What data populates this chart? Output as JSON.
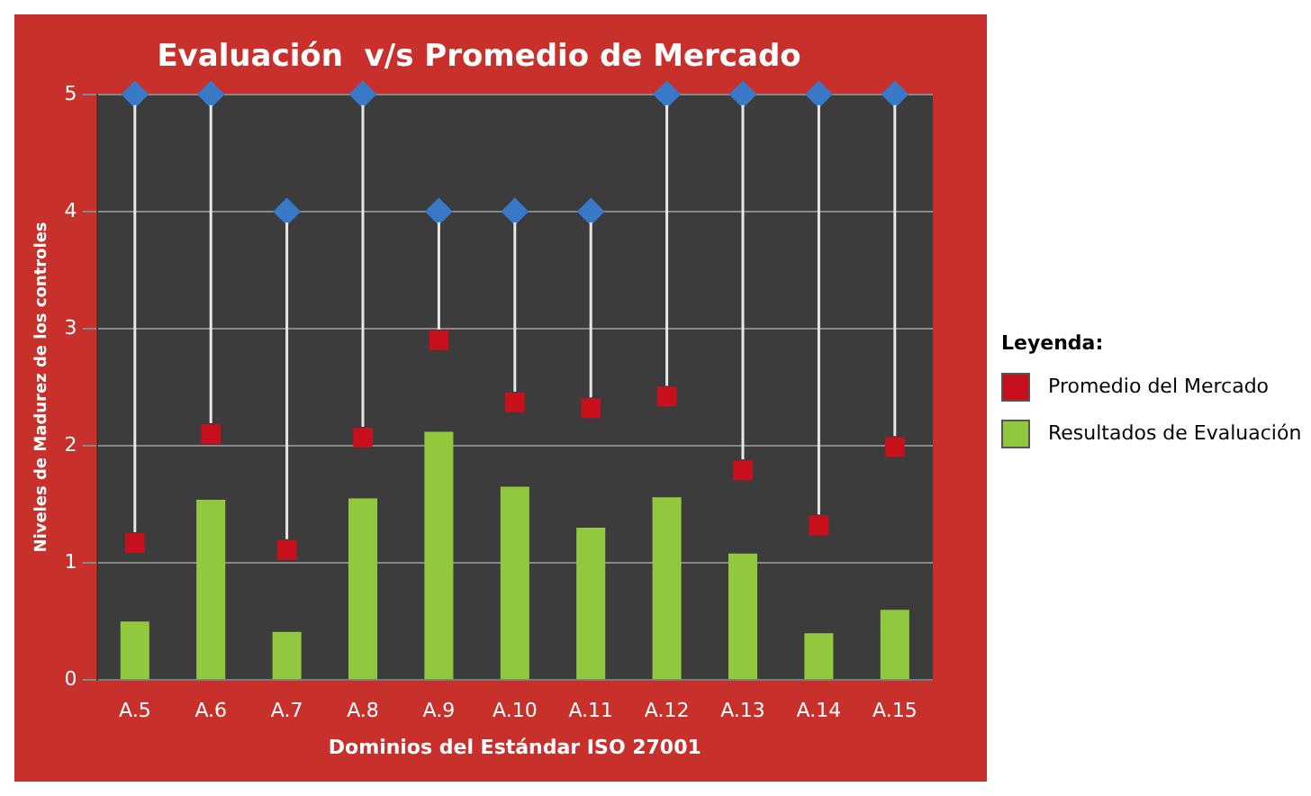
{
  "chart_data": {
    "type": "bar",
    "title": "Evaluación  v/s Promedio de Mercado",
    "xlabel": "Dominios del Estándar ISO 27001",
    "ylabel": "Niveles de Madurez de los controles",
    "legend_title": "Leyenda:",
    "categories": [
      "A.5",
      "A.6",
      "A.7",
      "A.8",
      "A.9",
      "A.10",
      "A.11",
      "A.12",
      "A.13",
      "A.14",
      "A.15"
    ],
    "series": [
      {
        "type": "scatter",
        "marker": "diamond",
        "color": "#3a78c8",
        "values": [
          5,
          5,
          4,
          5,
          4,
          4,
          4,
          5,
          5,
          5,
          5
        ]
      },
      {
        "type": "scatter",
        "marker": "square",
        "name": "Promedio del Mercado",
        "color": "#c8101c",
        "values": [
          1.17,
          2.1,
          1.11,
          2.07,
          2.9,
          2.37,
          2.32,
          2.42,
          1.79,
          1.32,
          1.99
        ]
      },
      {
        "name": "Resultados de Evaluación",
        "color": "#92c83e",
        "values": [
          0.5,
          1.54,
          0.41,
          1.55,
          2.12,
          1.65,
          1.3,
          1.56,
          1.08,
          0.4,
          0.6
        ]
      }
    ],
    "ylim": [
      0,
      5
    ],
    "yticks": [
      0,
      1,
      2,
      3,
      4,
      5
    ],
    "grid": "y",
    "legend": "right"
  }
}
